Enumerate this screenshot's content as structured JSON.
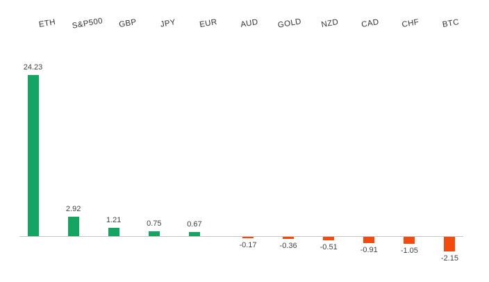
{
  "chart_data": {
    "type": "bar",
    "title": "",
    "xlabel": "",
    "ylabel": "",
    "categories": [
      "ETH",
      "S&P500",
      "GBP",
      "JPY",
      "EUR",
      "AUD",
      "GOLD",
      "NZD",
      "CAD",
      "CHF",
      "BTC"
    ],
    "values": [
      24.23,
      2.92,
      1.21,
      0.75,
      0.67,
      -0.17,
      -0.36,
      -0.51,
      -0.91,
      -1.05,
      -2.15
    ],
    "data_labels": [
      "24.23",
      "2.92",
      "1.21",
      "0.75",
      "0.67",
      "-0.17",
      "-0.36",
      "-0.51",
      "-0.91",
      "-1.05",
      "-2.15"
    ],
    "ylim": [
      -3,
      25
    ],
    "grid": false,
    "legend_position": "none",
    "category_label_position": "top",
    "category_label_rotation_deg": -10,
    "colors": {
      "positive_bar": "#16a463",
      "negative_bar": "#f54a0d",
      "axis_line": "#c6c6c6",
      "category_label_text": "#333333",
      "value_label_text": "#404040",
      "background": "#ffffff"
    }
  }
}
